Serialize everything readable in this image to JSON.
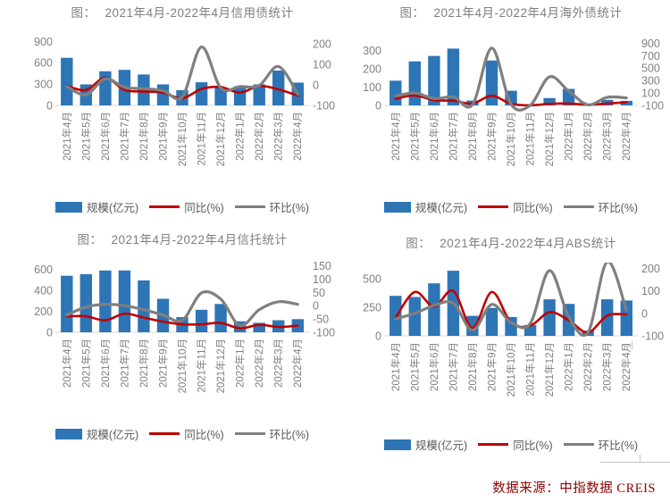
{
  "colors": {
    "bar": "#2E75B6",
    "yoy_line": "#C00000",
    "mom_line": "#7F7F7F",
    "axis_text": "#808080",
    "title_text": "#7F7F7F",
    "baseline": "#D9D9D9",
    "footer_text": "#8B0000"
  },
  "legend": {
    "scale_label": "规模(亿元)",
    "yoy_label": "同比(%)",
    "mom_label": "环比(%)"
  },
  "footer": {
    "source_label": "数据来源：中指数据 CREIS"
  },
  "chart_data": [
    {
      "type": "bar",
      "title_prefix": "图：",
      "title": "2021年4月-2022年4月信用债统计",
      "categories": [
        "2021年4月",
        "2021年5月",
        "2021年6月",
        "2021年7月",
        "2021年8月",
        "2021年9月",
        "2021年10月",
        "2021年11月",
        "2021年12月",
        "2022年1月",
        "2022年2月",
        "2022年3月",
        "2022年4月"
      ],
      "series": [
        {
          "name": "规模(亿元)",
          "type": "bar",
          "axis": "left",
          "values": [
            670,
            295,
            480,
            500,
            435,
            295,
            215,
            325,
            245,
            270,
            295,
            490,
            320
          ]
        },
        {
          "name": "同比(%)",
          "type": "line",
          "axis": "right",
          "values": [
            -5,
            -25,
            35,
            -25,
            -32,
            -38,
            -65,
            -20,
            -10,
            -38,
            -5,
            -22,
            -52
          ]
        },
        {
          "name": "环比(%)",
          "type": "line",
          "axis": "right",
          "values": [
            -8,
            -48,
            30,
            -12,
            -18,
            -28,
            -58,
            185,
            -15,
            -8,
            -3,
            90,
            -45
          ]
        }
      ],
      "left_axis": {
        "ticks": [
          900,
          600,
          300,
          0
        ],
        "min": 0,
        "max": 980
      },
      "right_axis": {
        "ticks": [
          200,
          100,
          0,
          -100
        ],
        "min": -100,
        "max": 240
      },
      "legend_position": "bottom"
    },
    {
      "type": "bar",
      "title_prefix": "图：",
      "title": "2021年4月-2022年4月海外债统计",
      "categories": [
        "2021年4月",
        "2021年5月",
        "2021年6月",
        "2021年7月",
        "2021年8月",
        "2021年9月",
        "2021年10月",
        "2021年11月",
        "2021年12月",
        "2022年1月",
        "2022年2月",
        "2022年3月",
        "2022年4月"
      ],
      "series": [
        {
          "name": "规模(亿元)",
          "type": "bar",
          "axis": "left",
          "values": [
            135,
            240,
            270,
            310,
            27,
            245,
            80,
            3,
            40,
            90,
            5,
            30,
            25
          ]
        },
        {
          "name": "同比(%)",
          "type": "line",
          "axis": "right",
          "values": [
            5,
            60,
            -15,
            -25,
            -70,
            55,
            -75,
            -98,
            -75,
            -70,
            -90,
            -70,
            -50
          ]
        },
        {
          "name": "环比(%)",
          "type": "line",
          "axis": "right",
          "values": [
            50,
            100,
            10,
            35,
            -90,
            820,
            -80,
            -98,
            360,
            130,
            -90,
            30,
            20
          ]
        }
      ],
      "left_axis": {
        "ticks": [
          300,
          200,
          100,
          0
        ],
        "min": 0,
        "max": 380
      },
      "right_axis": {
        "ticks": [
          900,
          700,
          500,
          300,
          100,
          -100
        ],
        "min": -100,
        "max": 1020
      },
      "legend_position": "bottom"
    },
    {
      "type": "bar",
      "title_prefix": "图：",
      "title": "2021年4月-2022年4月信托统计",
      "categories": [
        "2021年4月",
        "2021年5月",
        "2021年6月",
        "2021年7月",
        "2021年8月",
        "2021年9月",
        "2021年10月",
        "2021年11月",
        "2021年12月",
        "2022年1月",
        "2022年2月",
        "2022年3月",
        "2022年4月"
      ],
      "series": [
        {
          "name": "规模(亿元)",
          "type": "bar",
          "axis": "left",
          "values": [
            540,
            555,
            590,
            590,
            495,
            320,
            145,
            215,
            270,
            105,
            90,
            115,
            125
          ]
        },
        {
          "name": "同比(%)",
          "type": "line",
          "axis": "right",
          "values": [
            -40,
            -40,
            -55,
            -30,
            -45,
            -60,
            -70,
            -70,
            -65,
            -85,
            -72,
            -80,
            -75
          ]
        },
        {
          "name": "环比(%)",
          "type": "line",
          "axis": "right",
          "values": [
            -35,
            -5,
            5,
            0,
            -15,
            -35,
            -55,
            48,
            25,
            -75,
            -15,
            15,
            5
          ]
        }
      ],
      "left_axis": {
        "ticks": [
          600,
          400,
          200,
          0
        ],
        "min": 0,
        "max": 665
      },
      "right_axis": {
        "ticks": [
          150,
          100,
          50,
          0,
          -50,
          -100
        ],
        "min": -100,
        "max": 162
      },
      "legend_position": "bottom"
    },
    {
      "type": "bar",
      "title_prefix": "图：",
      "title": "2021年4月-2022年4月ABS统计",
      "categories": [
        "2021年4月",
        "2021年5月",
        "2021年6月",
        "2021年7月",
        "2021年8月",
        "2021年9月",
        "2021年10月",
        "2021年11月",
        "2021年12月",
        "2022年1月",
        "2022年2月",
        "2022年3月",
        "2022年4月"
      ],
      "series": [
        {
          "name": "规模(亿元)",
          "type": "bar",
          "axis": "left",
          "values": [
            350,
            340,
            460,
            570,
            175,
            245,
            165,
            95,
            320,
            280,
            45,
            320,
            310
          ]
        },
        {
          "name": "同比(%)",
          "type": "line",
          "axis": "right",
          "values": [
            -20,
            95,
            30,
            100,
            -65,
            95,
            -40,
            -55,
            5,
            -30,
            -85,
            -10,
            -5
          ]
        },
        {
          "name": "环比(%)",
          "type": "line",
          "axis": "right",
          "values": [
            -25,
            0,
            35,
            45,
            -75,
            40,
            -40,
            -45,
            190,
            -15,
            -85,
            230,
            15
          ]
        }
      ],
      "left_axis": {
        "ticks": [
          500,
          250,
          0
        ],
        "min": 0,
        "max": 610
      },
      "right_axis": {
        "ticks": [
          200,
          100,
          0,
          -100
        ],
        "min": -100,
        "max": 210
      },
      "legend_position": "bottom"
    }
  ]
}
